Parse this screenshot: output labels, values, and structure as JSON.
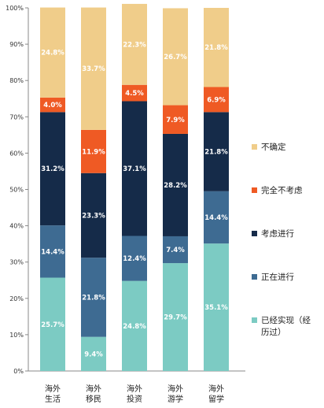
{
  "chart_data": {
    "type": "bar",
    "stacked": true,
    "ylim": [
      0,
      100
    ],
    "yticks": [
      "0%",
      "10%",
      "20%",
      "30%",
      "40%",
      "50%",
      "60%",
      "70%",
      "80%",
      "90%",
      "100%"
    ],
    "categories": [
      [
        "海外",
        "生活"
      ],
      [
        "海外",
        "移民"
      ],
      [
        "海外",
        "投资"
      ],
      [
        "海外",
        "游学"
      ],
      [
        "海外",
        "留学"
      ]
    ],
    "series": [
      {
        "name": "已经实现（经历过）",
        "color": "#7ccbc3",
        "values": [
          25.7,
          9.4,
          24.8,
          29.7,
          35.1
        ]
      },
      {
        "name": "正在进行",
        "color": "#3e6b92",
        "values": [
          14.4,
          21.8,
          12.4,
          7.4,
          14.4
        ]
      },
      {
        "name": "考虑进行",
        "color": "#152b49",
        "values": [
          31.2,
          23.3,
          37.1,
          28.2,
          21.8
        ]
      },
      {
        "name": "完全不考虑",
        "color": "#ef5a24",
        "values": [
          4.0,
          11.9,
          4.5,
          7.9,
          6.9
        ]
      },
      {
        "name": "不确定",
        "color": "#f0cd8a",
        "values": [
          24.8,
          33.7,
          22.3,
          26.7,
          21.8
        ]
      }
    ],
    "labels": [
      [
        "25.7%",
        "9.4%",
        "24.8%",
        "29.7%",
        "35.1%"
      ],
      [
        "14.4%",
        "21.8%",
        "12.4%",
        "7.4%",
        "14.4%"
      ],
      [
        "31.2%",
        "23.3%",
        "37.1%",
        "28.2%",
        "21.8%"
      ],
      [
        "4.0%",
        "11.9%",
        "4.5%",
        "7.9%",
        "6.9%"
      ],
      [
        "24.8%",
        "33.7%",
        "22.3%",
        "26.7%",
        "21.8%"
      ]
    ],
    "legend": [
      {
        "lines": [
          "不确定"
        ],
        "color": "#f0cd8a"
      },
      {
        "lines": [
          "完全不考虑"
        ],
        "color": "#ef5a24"
      },
      {
        "lines": [
          "考虑进行"
        ],
        "color": "#152b49"
      },
      {
        "lines": [
          "正在进行"
        ],
        "color": "#3e6b92"
      },
      {
        "lines": [
          "已经实现（经",
          "历过）"
        ],
        "color": "#7ccbc3"
      }
    ],
    "legend_position": "right",
    "grid": false
  }
}
